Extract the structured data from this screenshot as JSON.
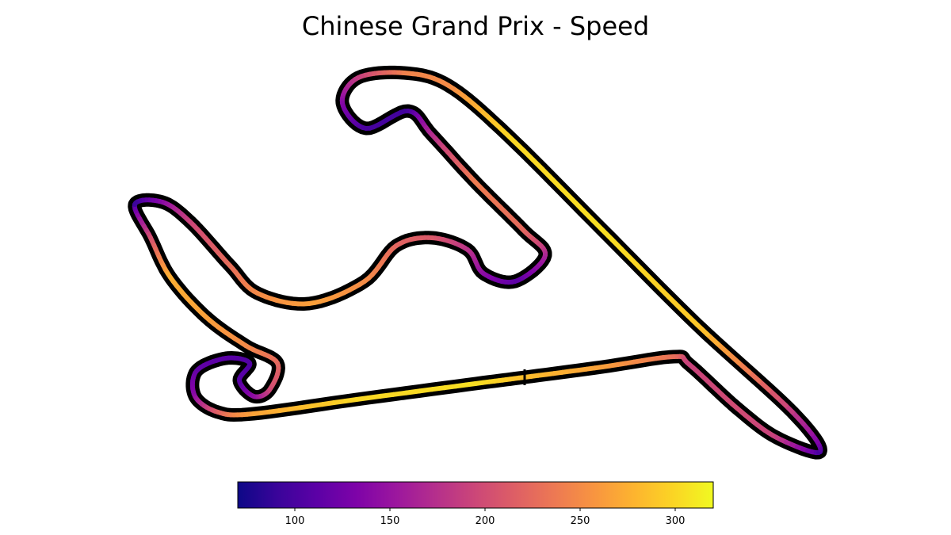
{
  "chart_data": {
    "type": "track-map",
    "title": "Chinese Grand Prix - Speed",
    "colormap": "plasma",
    "colorbar": {
      "vmin": 70,
      "vmax": 320,
      "ticks": [
        100,
        150,
        200,
        250,
        300
      ],
      "tick_labels": [
        "100",
        "150",
        "200",
        "250",
        "300"
      ]
    },
    "track": {
      "description": "lap trace coloured by speed",
      "points": [
        [
          170,
          258,
          90
        ],
        [
          190,
          300,
          200
        ],
        [
          215,
          350,
          275
        ],
        [
          260,
          400,
          265
        ],
        [
          310,
          436,
          250
        ],
        [
          350,
          458,
          225
        ],
        [
          340,
          492,
          200
        ],
        [
          320,
          500,
          150
        ],
        [
          302,
          480,
          110
        ],
        [
          315,
          458,
          105
        ],
        [
          285,
          452,
          110
        ],
        [
          248,
          468,
          115
        ],
        [
          246,
          500,
          140
        ],
        [
          275,
          520,
          215
        ],
        [
          320,
          522,
          265
        ],
        [
          450,
          504,
          300
        ],
        [
          600,
          484,
          305
        ],
        [
          662,
          476,
          285
        ],
        [
          760,
          463,
          265
        ],
        [
          850,
          450,
          230
        ],
        [
          870,
          460,
          190
        ],
        [
          930,
          515,
          200
        ],
        [
          980,
          552,
          190
        ],
        [
          1035,
          570,
          95
        ],
        [
          1000,
          520,
          180
        ],
        [
          880,
          410,
          290
        ],
        [
          760,
          290,
          305
        ],
        [
          640,
          170,
          300
        ],
        [
          566,
          108,
          250
        ],
        [
          510,
          92,
          245
        ],
        [
          452,
          98,
          190
        ],
        [
          432,
          130,
          140
        ],
        [
          462,
          162,
          100
        ],
        [
          515,
          140,
          95
        ],
        [
          545,
          170,
          170
        ],
        [
          600,
          230,
          240
        ],
        [
          660,
          290,
          225
        ],
        [
          688,
          322,
          170
        ],
        [
          650,
          355,
          110
        ],
        [
          610,
          345,
          140
        ],
        [
          590,
          315,
          175
        ],
        [
          545,
          300,
          210
        ],
        [
          500,
          310,
          220
        ],
        [
          460,
          355,
          250
        ],
        [
          390,
          383,
          265
        ],
        [
          325,
          370,
          250
        ],
        [
          290,
          335,
          230
        ],
        [
          240,
          280,
          195
        ],
        [
          205,
          255,
          145
        ],
        [
          170,
          258,
          90
        ]
      ]
    }
  },
  "colors": {
    "outline": "#000000",
    "background": "#ffffff",
    "colorbar_border": "#000000"
  }
}
